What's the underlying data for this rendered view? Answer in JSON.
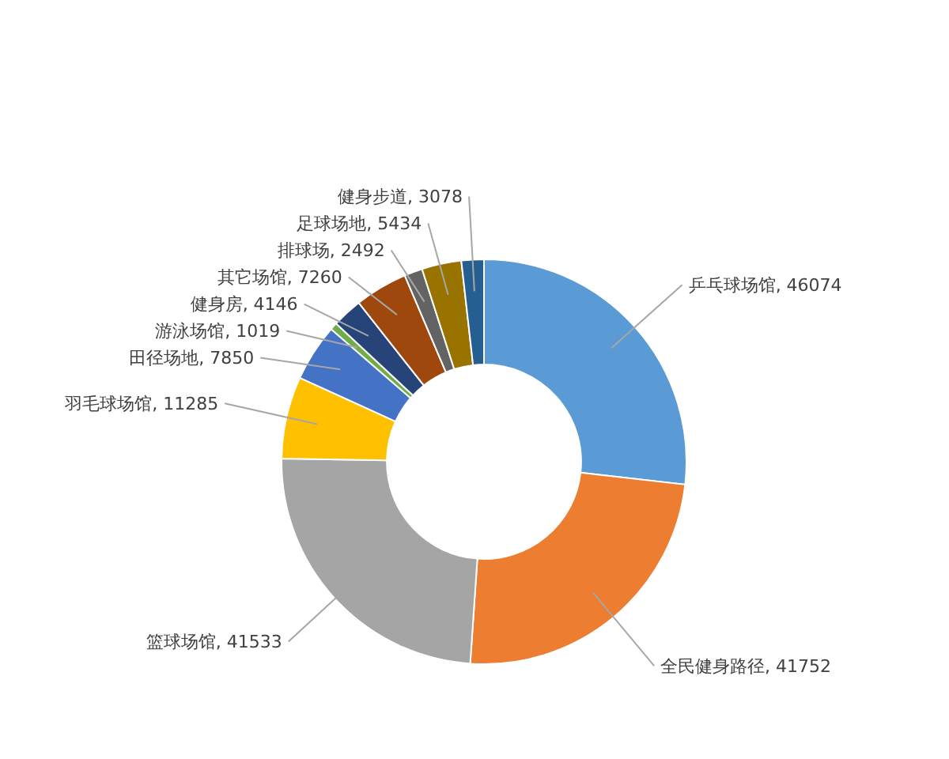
{
  "chart_data": {
    "type": "donut",
    "categories": [
      "乒乓球场馆",
      "全民健身路径",
      "篮球场馆",
      "羽毛球场馆",
      "田径场地",
      "游泳场馆",
      "健身房",
      "其它场馆",
      "排球场",
      "足球场地",
      "健身步道"
    ],
    "values": [
      46074,
      41752,
      41533,
      11285,
      7850,
      1019,
      4146,
      7260,
      2492,
      5434,
      3078
    ],
    "colors": [
      "#5b9bd5",
      "#ed7d31",
      "#a5a5a5",
      "#ffc000",
      "#4472c4",
      "#70ad47",
      "#264478",
      "#9e480e",
      "#636363",
      "#997300",
      "#255e91"
    ],
    "value_labels": [
      ", 46074",
      ", 41752",
      ", 41533",
      ", 11285",
      ", 7850",
      ", 1019",
      ", 4146",
      ", 7260",
      ", 2492",
      ", 5434",
      ", 3078"
    ],
    "legend": false
  }
}
